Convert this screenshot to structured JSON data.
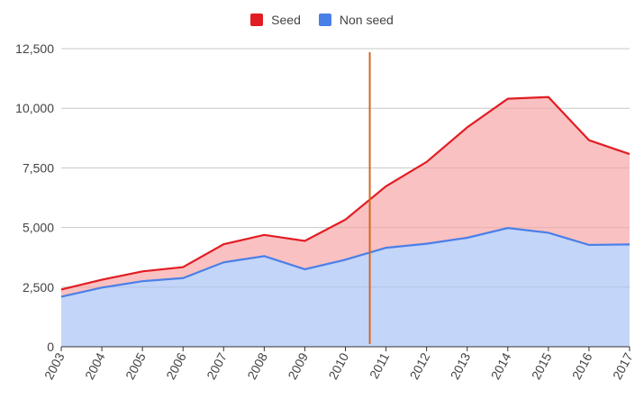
{
  "chart_data": {
    "type": "area",
    "stacked": true,
    "x": [
      "2003",
      "2004",
      "2005",
      "2006",
      "2007",
      "2008",
      "2009",
      "2010",
      "2011",
      "2012",
      "2013",
      "2014",
      "2015",
      "2016",
      "2017"
    ],
    "series": [
      {
        "name": "Non seed",
        "values": [
          2100,
          2480,
          2750,
          2880,
          3540,
          3800,
          3250,
          3650,
          4150,
          4320,
          4570,
          4980,
          4780,
          4270,
          4290
        ],
        "color": "#4a7fe8",
        "fill": "#c3d5f8"
      },
      {
        "name": "Seed",
        "values": [
          300,
          330,
          410,
          460,
          760,
          890,
          1190,
          1680,
          2580,
          3430,
          4630,
          5420,
          5690,
          4390,
          3790
        ],
        "color": "#e21c23",
        "fill": "#f9c1c1"
      }
    ],
    "ylim": [
      0,
      12500
    ],
    "yticks": [
      "0",
      "2,500",
      "5,000",
      "7,500",
      "10,000",
      "12,500"
    ],
    "yticks_values": [
      0,
      2500,
      5000,
      7500,
      10000,
      12500
    ],
    "marker_line": {
      "x": 2010.6,
      "color": "#d2691e"
    },
    "grid": true,
    "legend": "top-center",
    "title": "",
    "xlabel": "",
    "ylabel": ""
  }
}
